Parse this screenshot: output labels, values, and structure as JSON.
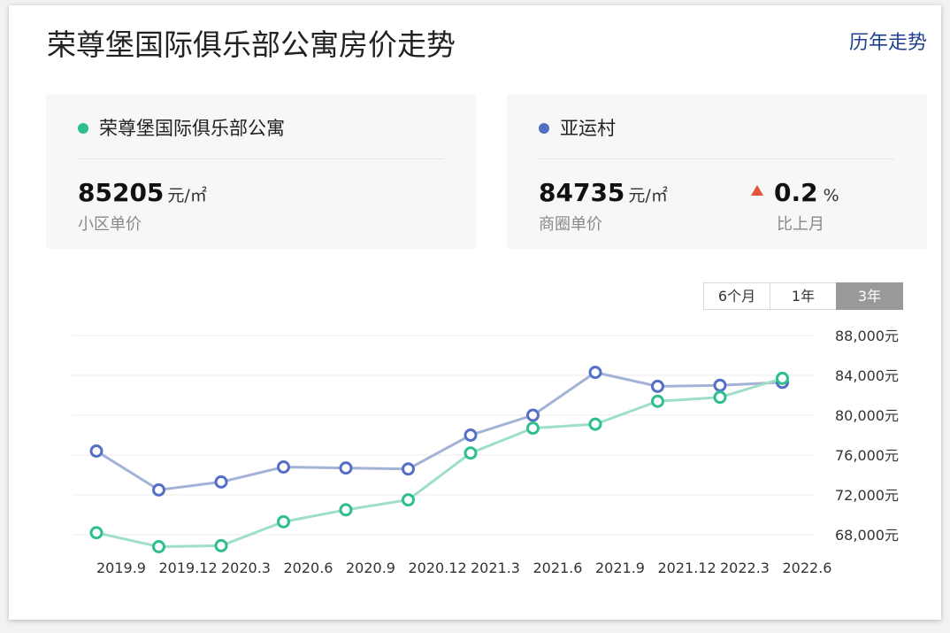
{
  "header": {
    "title": "荣尊堡国际俱乐部公寓房价走势",
    "history_link": "历年走势"
  },
  "stats": {
    "community": {
      "name": "荣尊堡国际俱乐部公寓",
      "value": "85205",
      "unit": "元/㎡",
      "label": "小区单价",
      "color": "#2fbf8f"
    },
    "district": {
      "name": "亚运村",
      "value": "84735",
      "unit": "元/㎡",
      "label": "商圈单价",
      "color": "#5470c6"
    },
    "change": {
      "value": "0.2",
      "unit": "%",
      "label": "比上月",
      "direction": "up",
      "color": "#e5533d"
    }
  },
  "range_tabs": [
    {
      "label": "6个月",
      "active": false
    },
    {
      "label": "1年",
      "active": false
    },
    {
      "label": "3年",
      "active": true
    }
  ],
  "chart_data": {
    "type": "line",
    "x_tick_labels": [
      "2019.9",
      "2019.12",
      "2020.3",
      "2020.6",
      "2020.9",
      "2020.12",
      "2021.3",
      "2021.6",
      "2021.9",
      "2021.12",
      "2022.3",
      "2022.6"
    ],
    "y_tick_labels": [
      "88,000元",
      "84,000元",
      "80,000元",
      "76,000元",
      "72,000元",
      "68,000元"
    ],
    "y_ticks": [
      88000,
      84000,
      80000,
      76000,
      72000,
      68000
    ],
    "ylim": [
      66000,
      88000
    ],
    "grid": true,
    "series": [
      {
        "name": "亚运村",
        "color": "#5470c6",
        "line_color": "#a3b2d6",
        "values": [
          76400,
          72500,
          73300,
          74800,
          74700,
          74600,
          78000,
          80000,
          84300,
          82900,
          83000,
          83300
        ]
      },
      {
        "name": "荣尊堡国际俱乐部公寓",
        "color": "#2fbf8f",
        "line_color": "#9edfc6",
        "values": [
          68200,
          66800,
          66900,
          69300,
          70500,
          71500,
          76200,
          78700,
          79100,
          81400,
          81800,
          83700
        ]
      }
    ]
  }
}
